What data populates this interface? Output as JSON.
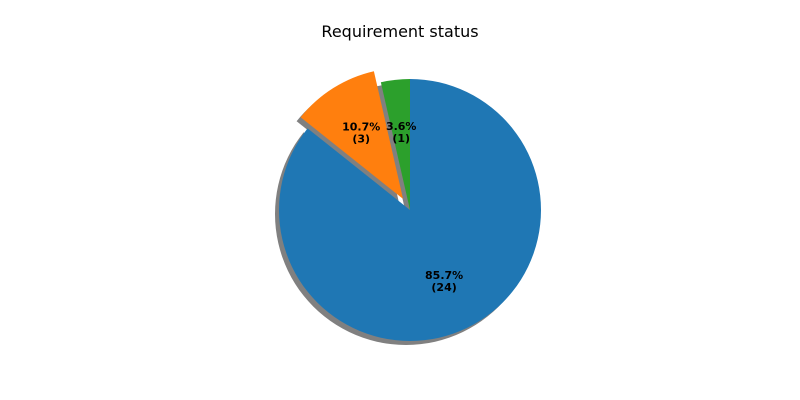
{
  "chart_data": {
    "type": "pie",
    "title": "Requirement status",
    "slices": [
      {
        "value": 24,
        "percent_label": "85.7%",
        "count_label": "(24)",
        "color": "#1f77b4",
        "exploded": false
      },
      {
        "value": 3,
        "percent_label": "10.7%",
        "count_label": "(3)",
        "color": "#ff7f0e",
        "exploded": true
      },
      {
        "value": 1,
        "percent_label": "3.6%",
        "count_label": "(1)",
        "color": "#2ca02c",
        "exploded": false
      }
    ],
    "start_angle_deg": 90,
    "direction": "clockwise",
    "shadow": true,
    "legend": "none"
  }
}
